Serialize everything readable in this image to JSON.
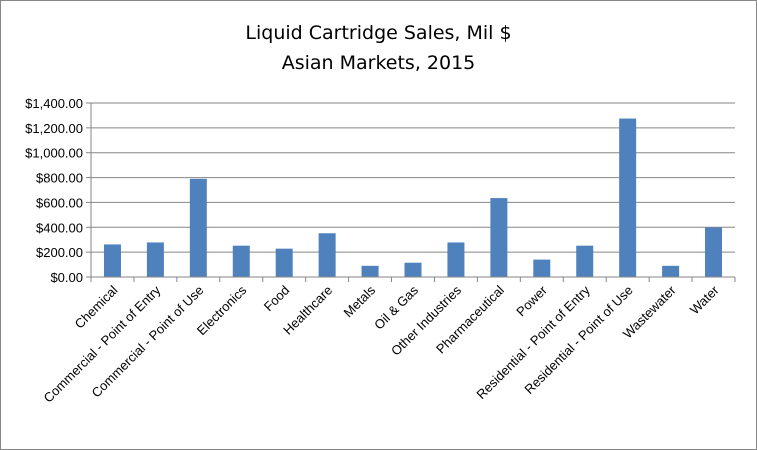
{
  "chart_data": {
    "type": "bar",
    "title": "Liquid Cartridge Sales, Mil $",
    "subtitle": "Asian Markets, 2015",
    "xlabel": "",
    "ylabel": "",
    "ylim": [
      0,
      1400
    ],
    "ytick_step": 200,
    "ytick_labels": [
      "$0.00",
      "$200.00",
      "$400.00",
      "$600.00",
      "$800.00",
      "$1,000.00",
      "$1,200.00",
      "$1,400.00"
    ],
    "grid": true,
    "legend": "none",
    "bar_color": "#4F81BD",
    "grid_color": "#868686",
    "categories": [
      "Chemical",
      "Commercial - Point of Entry",
      "Commercial - Point of Use",
      "Electronics",
      "Food",
      "Healthcare",
      "Metals",
      "Oil & Gas",
      "Other Industries",
      "Pharmaceutical",
      "Power",
      "Residential - Point of Entry",
      "Residential - Point of Use",
      "Wastewater",
      "Water"
    ],
    "values": [
      262,
      278,
      790,
      252,
      228,
      352,
      90,
      115,
      278,
      635,
      140,
      252,
      1275,
      90,
      398
    ]
  }
}
